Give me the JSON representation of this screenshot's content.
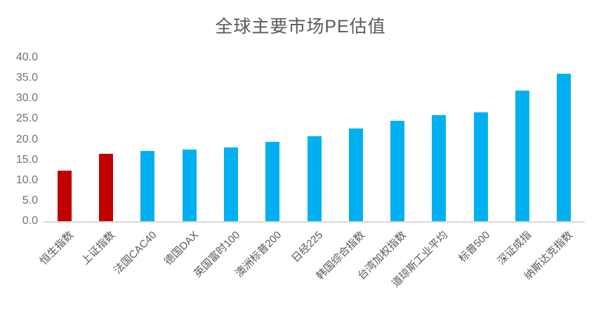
{
  "chart_data": {
    "type": "bar",
    "title": "全球主要市场PE估值",
    "categories": [
      "恒生指数",
      "上证指数",
      "法国CAC40",
      "德国DAX",
      "英国富时100",
      "澳洲标普200",
      "日经225",
      "韩国综合指数",
      "台湾加权指数",
      "道琼斯工业平均",
      "标普500",
      "深证成指",
      "纳斯达克指数"
    ],
    "values": [
      12.4,
      16.5,
      17.2,
      17.5,
      18.1,
      19.4,
      20.8,
      22.7,
      24.6,
      25.9,
      26.6,
      32.0,
      36.0
    ],
    "bar_colors": [
      "#c00000",
      "#c00000",
      "#00b0f0",
      "#00b0f0",
      "#00b0f0",
      "#00b0f0",
      "#00b0f0",
      "#00b0f0",
      "#00b0f0",
      "#00b0f0",
      "#00b0f0",
      "#00b0f0",
      "#00b0f0"
    ],
    "xlabel": "",
    "ylabel": "",
    "ylim": [
      0,
      40
    ],
    "ytick_step": 5,
    "ytick_labels": [
      "0.0",
      "5.0",
      "10.0",
      "15.0",
      "20.0",
      "25.0",
      "30.0",
      "35.0",
      "40.0"
    ],
    "grid": false,
    "legend": false,
    "colors": {
      "highlight_red": "#c00000",
      "default_blue": "#00b0f0",
      "axis_line": "#d9d9d9",
      "tick_text": "#737373",
      "title_text": "#595959"
    }
  }
}
